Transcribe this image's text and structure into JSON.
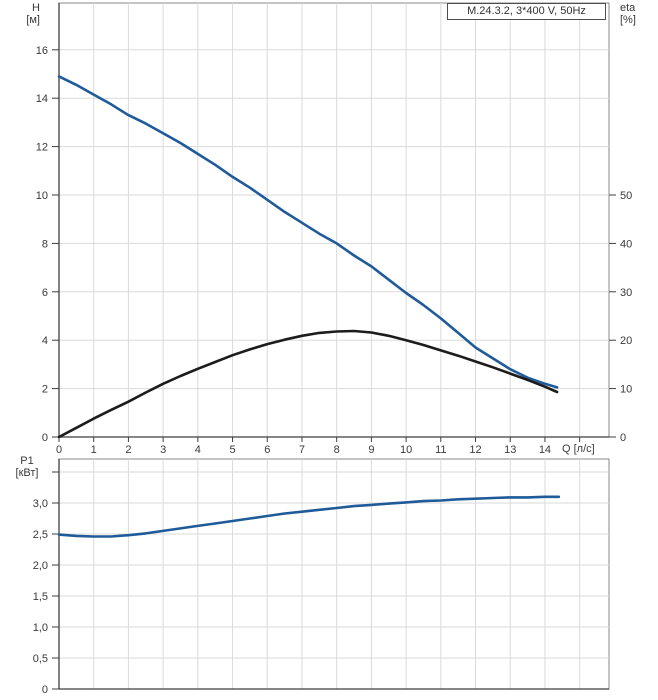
{
  "title_box": {
    "label": "M.24.3.2, 3*400 V, 50Hz"
  },
  "labels": {
    "h_axis_name": "H",
    "h_axis_unit": "[м]",
    "eta_axis_name": "eta",
    "eta_axis_unit": "[%]",
    "p1_axis_name": "P1",
    "p1_axis_unit": "[кВт]",
    "q_axis": "Q [л/с]"
  },
  "colors": {
    "curve_blue": "#1f5b99",
    "curve_black": "#1c1c1c",
    "grid": "#dadada",
    "border": "#8a8a8a",
    "axis": "#3f3f3f",
    "tick_text": "#3a3a3a"
  },
  "chart_data": [
    {
      "type": "line",
      "title": "M.24.3.2, 3*400 V, 50Hz",
      "xlabel": "Q [л/с]",
      "ylabel_left": "H [м]",
      "ylabel_right": "eta [%]",
      "xlim": [
        0,
        15.85
      ],
      "ylim_left": [
        0,
        18
      ],
      "ylim_right": [
        0,
        90
      ],
      "grid": true,
      "x_ticks": [
        [
          0,
          "0"
        ],
        [
          1,
          "1"
        ],
        [
          2,
          "2"
        ],
        [
          3,
          "3"
        ],
        [
          4,
          "4"
        ],
        [
          5,
          "5"
        ],
        [
          6,
          "6"
        ],
        [
          7,
          "7"
        ],
        [
          8,
          "8"
        ],
        [
          9,
          "9"
        ],
        [
          10,
          "10"
        ],
        [
          11,
          "11"
        ],
        [
          12,
          "12"
        ],
        [
          13,
          "13"
        ],
        [
          14,
          "14"
        ],
        [
          15,
          ""
        ]
      ],
      "y_ticks_left": [
        [
          0,
          "0"
        ],
        [
          2,
          "2"
        ],
        [
          4,
          "4"
        ],
        [
          6,
          "6"
        ],
        [
          8,
          "8"
        ],
        [
          10,
          "10"
        ],
        [
          12,
          "12"
        ],
        [
          14,
          "14"
        ],
        [
          16,
          "16"
        ]
      ],
      "y_ticks_right": [
        [
          0,
          "0"
        ],
        [
          10,
          "10"
        ],
        [
          20,
          "20"
        ],
        [
          30,
          "30"
        ],
        [
          40,
          "40"
        ],
        [
          50,
          "50"
        ]
      ],
      "series": [
        {
          "name": "H",
          "axis": "left",
          "color": "#1f5b99",
          "points": [
            [
              0,
              14.9
            ],
            [
              0.5,
              14.55
            ],
            [
              1,
              14.15
            ],
            [
              1.5,
              13.75
            ],
            [
              2,
              13.3
            ],
            [
              2.5,
              12.95
            ],
            [
              3,
              12.55
            ],
            [
              3.5,
              12.15
            ],
            [
              4,
              11.7
            ],
            [
              4.5,
              11.25
            ],
            [
              5,
              10.75
            ],
            [
              5.5,
              10.3
            ],
            [
              6,
              9.8
            ],
            [
              6.5,
              9.3
            ],
            [
              7,
              8.85
            ],
            [
              7.5,
              8.4
            ],
            [
              8,
              8.0
            ],
            [
              8.5,
              7.5
            ],
            [
              9,
              7.05
            ],
            [
              9.5,
              6.5
            ],
            [
              10,
              5.95
            ],
            [
              10.5,
              5.45
            ],
            [
              11,
              4.9
            ],
            [
              11.5,
              4.3
            ],
            [
              12,
              3.7
            ],
            [
              12.5,
              3.25
            ],
            [
              13,
              2.8
            ],
            [
              13.5,
              2.45
            ],
            [
              14,
              2.2
            ],
            [
              14.35,
              2.05
            ]
          ]
        },
        {
          "name": "eta",
          "axis": "right",
          "color": "#1c1c1c",
          "points": [
            [
              0,
              0
            ],
            [
              0.5,
              1.9
            ],
            [
              1,
              3.8
            ],
            [
              1.5,
              5.6
            ],
            [
              2,
              7.3
            ],
            [
              2.5,
              9.2
            ],
            [
              3,
              11.0
            ],
            [
              3.5,
              12.6
            ],
            [
              4,
              14.1
            ],
            [
              4.5,
              15.5
            ],
            [
              5,
              16.9
            ],
            [
              5.5,
              18.1
            ],
            [
              6,
              19.2
            ],
            [
              6.5,
              20.1
            ],
            [
              7,
              20.9
            ],
            [
              7.5,
              21.5
            ],
            [
              8,
              21.8
            ],
            [
              8.5,
              21.9
            ],
            [
              9,
              21.6
            ],
            [
              9.5,
              20.9
            ],
            [
              10,
              20.0
            ],
            [
              10.5,
              19.0
            ],
            [
              11,
              17.9
            ],
            [
              11.5,
              16.8
            ],
            [
              12,
              15.6
            ],
            [
              12.5,
              14.4
            ],
            [
              13,
              13.1
            ],
            [
              13.5,
              11.8
            ],
            [
              14,
              10.4
            ],
            [
              14.35,
              9.3
            ]
          ]
        }
      ]
    },
    {
      "type": "line",
      "title": "",
      "xlabel": "",
      "ylabel_left": "P1 [кВт]",
      "xlim": [
        0,
        15.85
      ],
      "ylim_left": [
        0,
        3.7
      ],
      "grid": true,
      "x_ticks": [],
      "y_ticks_left": [
        [
          0,
          "0"
        ],
        [
          0.5,
          "0,5"
        ],
        [
          1,
          "1,0"
        ],
        [
          1.5,
          "1,5"
        ],
        [
          2,
          "2,0"
        ],
        [
          2.5,
          "2,5"
        ],
        [
          3,
          "3,0"
        ],
        [
          3.5,
          ""
        ]
      ],
      "series": [
        {
          "name": "P1",
          "axis": "left",
          "color": "#1f5b99",
          "points": [
            [
              0,
              2.49
            ],
            [
              0.5,
              2.47
            ],
            [
              1,
              2.46
            ],
            [
              1.5,
              2.46
            ],
            [
              2,
              2.48
            ],
            [
              2.5,
              2.51
            ],
            [
              3,
              2.55
            ],
            [
              3.5,
              2.59
            ],
            [
              4,
              2.63
            ],
            [
              4.5,
              2.67
            ],
            [
              5,
              2.71
            ],
            [
              5.5,
              2.75
            ],
            [
              6,
              2.79
            ],
            [
              6.5,
              2.83
            ],
            [
              7,
              2.86
            ],
            [
              7.5,
              2.89
            ],
            [
              8,
              2.92
            ],
            [
              8.5,
              2.95
            ],
            [
              9,
              2.97
            ],
            [
              9.5,
              2.99
            ],
            [
              10,
              3.01
            ],
            [
              10.5,
              3.03
            ],
            [
              11,
              3.04
            ],
            [
              11.5,
              3.06
            ],
            [
              12,
              3.07
            ],
            [
              12.5,
              3.08
            ],
            [
              13,
              3.09
            ],
            [
              13.5,
              3.09
            ],
            [
              14,
              3.1
            ],
            [
              14.4,
              3.1
            ]
          ]
        }
      ]
    }
  ]
}
